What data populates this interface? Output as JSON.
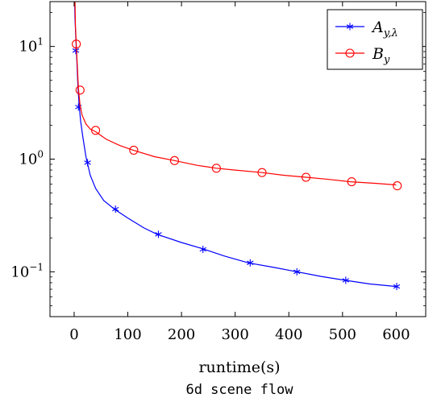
{
  "chart_data": {
    "type": "line",
    "title": "",
    "caption": "6d scene flow",
    "xlabel": "runtime(s)",
    "ylabel": "",
    "xlim": [
      -45,
      655
    ],
    "ylim": [
      0.04,
      25
    ],
    "yscale": "log",
    "grid": false,
    "legend_position": "top-right",
    "xticks": [
      0,
      100,
      200,
      300,
      400,
      500,
      600
    ],
    "xtick_labels": [
      "0",
      "100",
      "200",
      "300",
      "400",
      "500",
      "600"
    ],
    "yticks": [
      {
        "value": 0.1,
        "base": "10",
        "exp": "−1"
      },
      {
        "value": 1,
        "base": "10",
        "exp": "0"
      },
      {
        "value": 10,
        "base": "10",
        "exp": "1"
      }
    ],
    "series": [
      {
        "name": "A",
        "name_sub": "y,λ",
        "color": "#0000ff",
        "marker": "asterisk",
        "curve": [
          [
            0.6,
            28
          ],
          [
            1.5,
            18
          ],
          [
            3,
            12
          ],
          [
            5,
            7.5
          ],
          [
            7,
            4.5
          ],
          [
            9,
            3.2
          ],
          [
            12,
            2.2
          ],
          [
            16,
            1.6
          ],
          [
            22,
            1.05
          ],
          [
            30,
            0.72
          ],
          [
            40,
            0.55
          ],
          [
            55,
            0.43
          ],
          [
            75,
            0.36
          ],
          [
            100,
            0.3
          ],
          [
            130,
            0.245
          ],
          [
            155,
            0.215
          ],
          [
            200,
            0.182
          ],
          [
            240,
            0.16
          ],
          [
            280,
            0.138
          ],
          [
            325,
            0.12
          ],
          [
            370,
            0.11
          ],
          [
            415,
            0.1
          ],
          [
            460,
            0.091
          ],
          [
            505,
            0.084
          ],
          [
            550,
            0.078
          ],
          [
            600,
            0.074
          ]
        ],
        "markers": [
          [
            3,
            9.2
          ],
          [
            8,
            2.9
          ],
          [
            25,
            0.93
          ],
          [
            77,
            0.36
          ],
          [
            157,
            0.215
          ],
          [
            240,
            0.158
          ],
          [
            328,
            0.12
          ],
          [
            415,
            0.1
          ],
          [
            506,
            0.084
          ],
          [
            601,
            0.074
          ]
        ]
      },
      {
        "name": "B",
        "name_sub": "y",
        "color": "#ff0000",
        "marker": "circle",
        "curve": [
          [
            1.5,
            25
          ],
          [
            2.5,
            15
          ],
          [
            4,
            10.5
          ],
          [
            6,
            6.5
          ],
          [
            8,
            4.2
          ],
          [
            11,
            3.0
          ],
          [
            15,
            2.45
          ],
          [
            22,
            2.05
          ],
          [
            30,
            1.85
          ],
          [
            40,
            1.75
          ],
          [
            60,
            1.5
          ],
          [
            85,
            1.32
          ],
          [
            110,
            1.2
          ],
          [
            150,
            1.05
          ],
          [
            187,
            0.97
          ],
          [
            230,
            0.88
          ],
          [
            265,
            0.83
          ],
          [
            300,
            0.8
          ],
          [
            350,
            0.76
          ],
          [
            390,
            0.72
          ],
          [
            432,
            0.69
          ],
          [
            475,
            0.66
          ],
          [
            515,
            0.63
          ],
          [
            560,
            0.61
          ],
          [
            600,
            0.59
          ]
        ],
        "markers": [
          [
            4,
            10.5
          ],
          [
            11,
            4.1
          ],
          [
            40,
            1.8
          ],
          [
            111,
            1.2
          ],
          [
            187,
            0.97
          ],
          [
            265,
            0.83
          ],
          [
            350,
            0.76
          ],
          [
            432,
            0.69
          ],
          [
            517,
            0.63
          ],
          [
            602,
            0.58
          ]
        ]
      }
    ]
  }
}
